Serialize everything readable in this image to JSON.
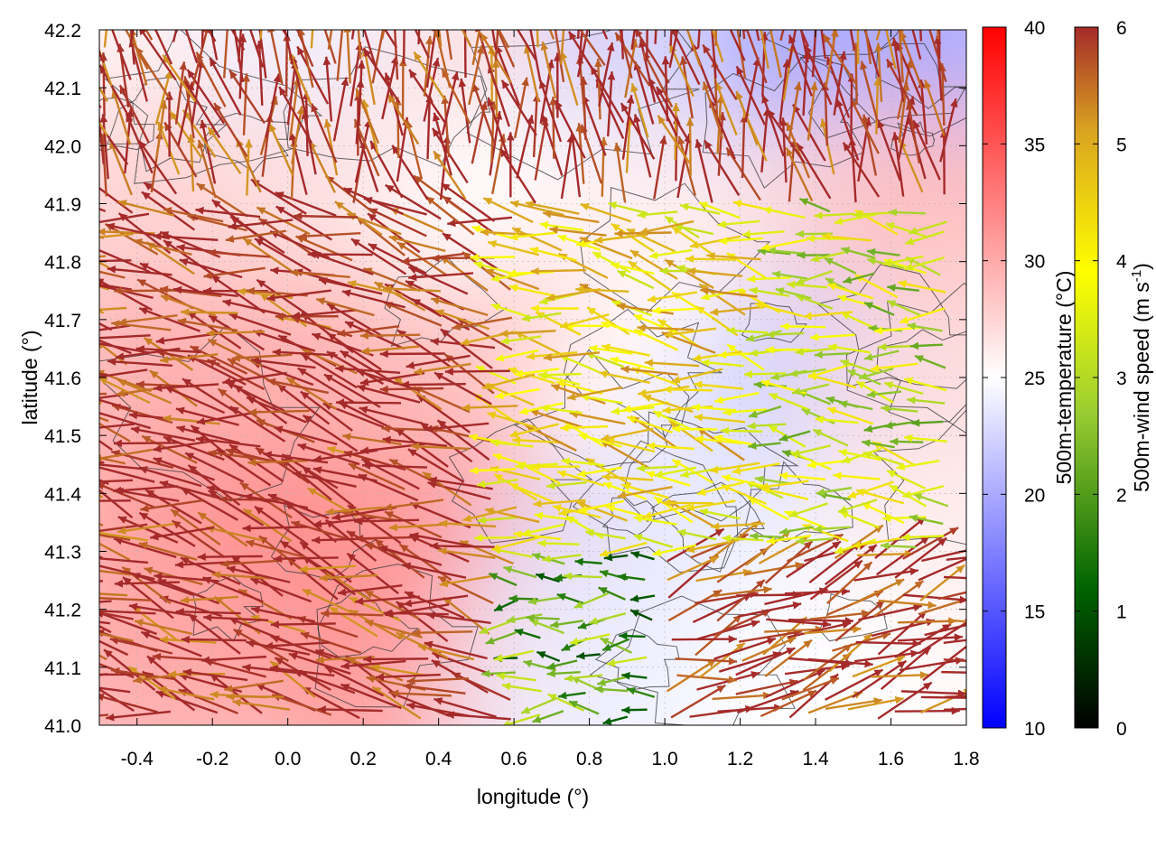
{
  "chart_data": {
    "type": "heatmap",
    "title": "",
    "xlabel": "longitude (°)",
    "ylabel": "latitude (°)",
    "xlim": [
      -0.5,
      1.8
    ],
    "ylim": [
      41.0,
      42.2
    ],
    "x_ticks": [
      -0.4,
      -0.2,
      0.0,
      0.2,
      0.4,
      0.6,
      0.8,
      1.0,
      1.2,
      1.4,
      1.6,
      1.8
    ],
    "x_tick_labels": [
      "-0.4",
      "-0.2",
      "0.0",
      "0.2",
      "0.4",
      "0.6",
      "0.8",
      "1.0",
      "1.2",
      "1.4",
      "1.6",
      "1.8"
    ],
    "y_ticks": [
      41.0,
      41.1,
      41.2,
      41.3,
      41.4,
      41.5,
      41.6,
      41.7,
      41.8,
      41.9,
      42.0,
      42.1,
      42.2
    ],
    "y_tick_labels": [
      "41.0",
      "41.1",
      "41.2",
      "41.3",
      "41.4",
      "41.5",
      "41.6",
      "41.7",
      "41.8",
      "41.9",
      "42.0",
      "42.1",
      "42.2"
    ],
    "grid": true,
    "temperature_colorbar": {
      "label": "500m-temperature (°C)",
      "range": [
        10,
        40
      ],
      "ticks": [
        10,
        15,
        20,
        25,
        30,
        35,
        40
      ],
      "tick_labels": [
        "10",
        "15",
        "20",
        "25",
        "30",
        "35",
        "40"
      ],
      "colors": [
        "#0000ff",
        "#ffffff",
        "#ff0000"
      ]
    },
    "wind_colorbar": {
      "label_main": "500m-wind speed (m s",
      "label_sup": "-1",
      "label_close": ")",
      "range": [
        0,
        6
      ],
      "ticks": [
        0,
        1,
        2,
        3,
        4,
        5,
        6
      ],
      "tick_labels": [
        "0",
        "1",
        "2",
        "3",
        "4",
        "5",
        "6"
      ],
      "colors": [
        "#000000",
        "#006400",
        "#9acd32",
        "#ffff00",
        "#daa520",
        "#a52a2a"
      ]
    },
    "temperature_field": [
      {
        "lon": -0.35,
        "lat": 42.15,
        "t": 26
      },
      {
        "lon": 0.1,
        "lat": 42.15,
        "t": 24
      },
      {
        "lon": 0.6,
        "lat": 42.15,
        "t": 27
      },
      {
        "lon": 1.0,
        "lat": 42.15,
        "t": 22
      },
      {
        "lon": 1.5,
        "lat": 42.15,
        "t": 19
      },
      {
        "lon": 1.75,
        "lat": 42.15,
        "t": 20
      },
      {
        "lon": -0.35,
        "lat": 41.85,
        "t": 28
      },
      {
        "lon": 0.1,
        "lat": 41.85,
        "t": 27
      },
      {
        "lon": 0.6,
        "lat": 41.85,
        "t": 25
      },
      {
        "lon": 1.0,
        "lat": 41.85,
        "t": 26
      },
      {
        "lon": 1.5,
        "lat": 41.85,
        "t": 27
      },
      {
        "lon": 1.75,
        "lat": 41.85,
        "t": 29
      },
      {
        "lon": -0.35,
        "lat": 41.55,
        "t": 30
      },
      {
        "lon": 0.1,
        "lat": 41.55,
        "t": 30
      },
      {
        "lon": 0.6,
        "lat": 41.55,
        "t": 29
      },
      {
        "lon": 1.0,
        "lat": 41.55,
        "t": 25
      },
      {
        "lon": 1.4,
        "lat": 41.55,
        "t": 22
      },
      {
        "lon": 1.75,
        "lat": 41.55,
        "t": 27
      },
      {
        "lon": -0.35,
        "lat": 41.25,
        "t": 31
      },
      {
        "lon": 0.1,
        "lat": 41.25,
        "t": 32
      },
      {
        "lon": 0.5,
        "lat": 41.25,
        "t": 31
      },
      {
        "lon": 0.85,
        "lat": 41.25,
        "t": 23
      },
      {
        "lon": 1.3,
        "lat": 41.25,
        "t": 24
      },
      {
        "lon": 1.75,
        "lat": 41.25,
        "t": 26
      },
      {
        "lon": -0.35,
        "lat": 41.05,
        "t": 30
      },
      {
        "lon": 0.3,
        "lat": 41.05,
        "t": 31
      },
      {
        "lon": 0.75,
        "lat": 41.05,
        "t": 24
      },
      {
        "lon": 1.4,
        "lat": 41.05,
        "t": 25
      }
    ],
    "wind_regions": [
      {
        "lon_min": -0.5,
        "lon_max": 1.8,
        "lat_min": 41.9,
        "lat_max": 42.2,
        "speed": 6,
        "dir_deg": 100
      },
      {
        "lon_min": -0.5,
        "lon_max": 0.6,
        "lat_min": 41.0,
        "lat_max": 41.9,
        "speed": 6,
        "dir_deg": 165
      },
      {
        "lon_min": 0.6,
        "lon_max": 1.3,
        "lat_min": 41.3,
        "lat_max": 41.9,
        "speed": 4,
        "dir_deg": 170
      },
      {
        "lon_min": 1.3,
        "lon_max": 1.8,
        "lat_min": 41.3,
        "lat_max": 41.9,
        "speed": 3,
        "dir_deg": 175
      },
      {
        "lon_min": 0.6,
        "lon_max": 1.0,
        "lat_min": 41.0,
        "lat_max": 41.3,
        "speed": 2,
        "dir_deg": 180
      },
      {
        "lon_min": 1.0,
        "lon_max": 1.8,
        "lat_min": 41.0,
        "lat_max": 41.3,
        "speed": 6,
        "dir_deg": 20
      }
    ]
  }
}
